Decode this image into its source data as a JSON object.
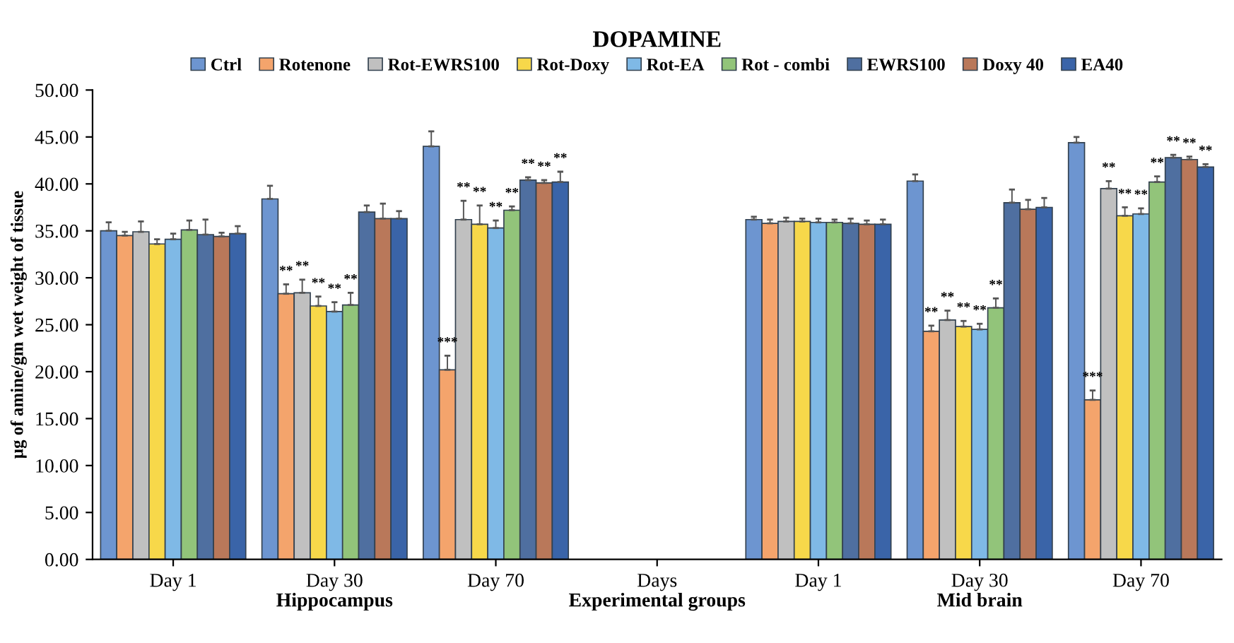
{
  "chart_data": {
    "type": "bar",
    "title": "DOPAMINE",
    "ylabel": "µg of amine/gm wet weight of tissue",
    "categories": [
      "Day 1",
      "Day 30",
      "Day 70",
      "Days",
      "Day 1",
      "Day 30",
      "Day 70"
    ],
    "annotations": [
      "Hippocampus",
      "Experimental groups",
      "Mid brain"
    ],
    "ylim": [
      0,
      50
    ],
    "yticks": [
      {
        "value": 0,
        "label": "0.00"
      },
      {
        "value": 5,
        "label": "5.00"
      },
      {
        "value": 10,
        "label": "10.00"
      },
      {
        "value": 15,
        "label": "15.00"
      },
      {
        "value": 20,
        "label": "20.00"
      },
      {
        "value": 25,
        "label": "25.00"
      },
      {
        "value": 30,
        "label": "30.00"
      },
      {
        "value": 35,
        "label": "35.00"
      },
      {
        "value": 40,
        "label": "40.00"
      },
      {
        "value": 45,
        "label": "45.00"
      },
      {
        "value": 50,
        "label": "50.00"
      }
    ],
    "legend": "top",
    "grid": false,
    "series": [
      {
        "name": "Ctrl",
        "color": "#6d95d0",
        "values": [
          35.0,
          38.4,
          44.0,
          null,
          36.2,
          40.3,
          44.4
        ],
        "errors": [
          0.9,
          1.4,
          1.6,
          null,
          0.3,
          0.7,
          0.6
        ],
        "value_labels": [
          null,
          null,
          null,
          null,
          null,
          null,
          null
        ]
      },
      {
        "name": "Rotenone",
        "color": "#f4a46c",
        "values": [
          34.5,
          28.3,
          20.2,
          null,
          35.8,
          24.3,
          17.0
        ],
        "errors": [
          0.4,
          1.0,
          1.5,
          null,
          0.4,
          0.6,
          1.0
        ],
        "value_labels": [
          null,
          "**",
          "***",
          null,
          null,
          "**",
          "***"
        ]
      },
      {
        "name": "Rot-EWRS100",
        "color": "#c0c0c0",
        "values": [
          34.9,
          28.4,
          36.2,
          null,
          36.0,
          25.5,
          39.5
        ],
        "errors": [
          1.1,
          1.4,
          2.0,
          null,
          0.4,
          1.0,
          0.8
        ],
        "value_labels": [
          null,
          "**",
          "**",
          null,
          null,
          "**",
          "**"
        ]
      },
      {
        "name": "Rot-Doxy",
        "color": "#f7d84a",
        "values": [
          33.6,
          27.0,
          35.7,
          null,
          36.0,
          24.8,
          36.6
        ],
        "errors": [
          0.5,
          1.0,
          2.0,
          null,
          0.3,
          0.6,
          0.9
        ],
        "value_labels": [
          null,
          "**",
          "**",
          null,
          null,
          "**",
          "**"
        ]
      },
      {
        "name": "Rot-EA",
        "color": "#7fb9e6",
        "values": [
          34.1,
          26.4,
          35.3,
          null,
          35.9,
          24.5,
          36.8
        ],
        "errors": [
          0.6,
          1.0,
          0.8,
          null,
          0.4,
          0.6,
          0.6
        ],
        "value_labels": [
          null,
          "**",
          "**",
          null,
          null,
          "**",
          "**"
        ]
      },
      {
        "name": "Rot - combi",
        "color": "#92c47a",
        "values": [
          35.1,
          27.1,
          37.2,
          null,
          35.9,
          26.8,
          40.2
        ],
        "errors": [
          1.0,
          1.3,
          0.4,
          null,
          0.3,
          1.0,
          0.6
        ],
        "value_labels": [
          null,
          "**",
          "**",
          null,
          null,
          "**",
          "**"
        ]
      },
      {
        "name": "EWRS100",
        "color": "#4f6fa0",
        "values": [
          34.6,
          37.0,
          40.4,
          null,
          35.8,
          38.0,
          42.8
        ],
        "errors": [
          1.6,
          0.7,
          0.3,
          null,
          0.5,
          1.4,
          0.3
        ],
        "value_labels": [
          null,
          null,
          "**",
          null,
          null,
          null,
          "**"
        ]
      },
      {
        "name": "Doxy 40",
        "color": "#b9785a",
        "values": [
          34.4,
          36.3,
          40.1,
          null,
          35.7,
          37.3,
          42.6
        ],
        "errors": [
          0.4,
          1.6,
          0.3,
          null,
          0.4,
          1.0,
          0.3
        ],
        "value_labels": [
          null,
          null,
          "**",
          null,
          null,
          null,
          "**"
        ]
      },
      {
        "name": "EA40",
        "color": "#3a64a8",
        "values": [
          34.7,
          36.3,
          40.2,
          null,
          35.7,
          37.5,
          41.8
        ],
        "errors": [
          0.8,
          0.8,
          1.1,
          null,
          0.5,
          1.0,
          0.3
        ],
        "value_labels": [
          null,
          null,
          "**",
          null,
          null,
          null,
          "**"
        ]
      }
    ]
  }
}
